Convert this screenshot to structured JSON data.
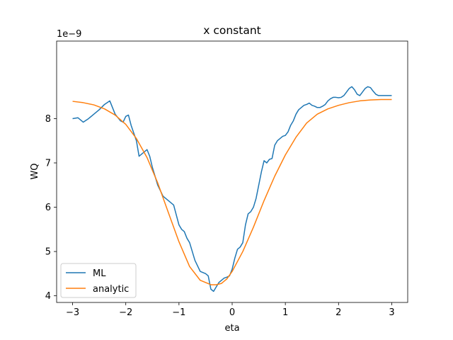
{
  "chart_data": {
    "type": "line",
    "title": "x constant",
    "xlabel": "eta",
    "ylabel": "WQ",
    "y_offset_label": "1e−9",
    "xlim": [
      -3.3,
      3.3
    ],
    "ylim": [
      3.85,
      9.75
    ],
    "x_ticks": [
      -3,
      -2,
      -1,
      0,
      1,
      2,
      3
    ],
    "x_tick_labels": [
      "−3",
      "−2",
      "−1",
      "0",
      "1",
      "2",
      "3"
    ],
    "y_ticks": [
      4,
      5,
      6,
      7,
      8
    ],
    "y_tick_labels": [
      "4",
      "5",
      "6",
      "7",
      "8"
    ],
    "grid": false,
    "legend_position": "lower-left",
    "series": [
      {
        "name": "ML",
        "color": "#1f77b4",
        "x": [
          -3.0,
          -2.9,
          -2.8,
          -2.7,
          -2.6,
          -2.5,
          -2.4,
          -2.3,
          -2.25,
          -2.2,
          -2.1,
          -2.05,
          -2.0,
          -1.95,
          -1.9,
          -1.8,
          -1.75,
          -1.7,
          -1.6,
          -1.55,
          -1.5,
          -1.45,
          -1.4,
          -1.3,
          -1.2,
          -1.1,
          -1.0,
          -0.95,
          -0.9,
          -0.85,
          -0.8,
          -0.75,
          -0.7,
          -0.6,
          -0.5,
          -0.45,
          -0.4,
          -0.35,
          -0.3,
          -0.25,
          -0.2,
          -0.15,
          -0.1,
          -0.05,
          0.0,
          0.05,
          0.1,
          0.15,
          0.2,
          0.25,
          0.3,
          0.35,
          0.4,
          0.45,
          0.5,
          0.55,
          0.6,
          0.65,
          0.7,
          0.75,
          0.8,
          0.85,
          0.9,
          0.95,
          1.0,
          1.05,
          1.1,
          1.15,
          1.2,
          1.25,
          1.3,
          1.35,
          1.4,
          1.45,
          1.5,
          1.55,
          1.6,
          1.65,
          1.7,
          1.75,
          1.8,
          1.85,
          1.9,
          1.95,
          2.0,
          2.05,
          2.1,
          2.15,
          2.2,
          2.25,
          2.3,
          2.35,
          2.4,
          2.45,
          2.5,
          2.55,
          2.6,
          2.65,
          2.7,
          2.75,
          2.8,
          2.85,
          2.9,
          2.95,
          3.0
        ],
        "y": [
          8.0,
          8.02,
          7.92,
          8.0,
          8.1,
          8.2,
          8.32,
          8.4,
          8.25,
          8.1,
          7.95,
          7.92,
          8.05,
          8.08,
          7.85,
          7.5,
          7.15,
          7.2,
          7.3,
          7.15,
          6.9,
          6.7,
          6.5,
          6.25,
          6.15,
          6.05,
          5.6,
          5.5,
          5.45,
          5.3,
          5.2,
          5.0,
          4.8,
          4.55,
          4.5,
          4.45,
          4.15,
          4.1,
          4.2,
          4.3,
          4.35,
          4.4,
          4.42,
          4.45,
          4.6,
          4.85,
          5.05,
          5.1,
          5.2,
          5.6,
          5.85,
          5.9,
          6.0,
          6.2,
          6.5,
          6.8,
          7.05,
          7.0,
          7.08,
          7.1,
          7.4,
          7.5,
          7.55,
          7.6,
          7.62,
          7.7,
          7.85,
          7.95,
          8.1,
          8.2,
          8.25,
          8.3,
          8.32,
          8.35,
          8.3,
          8.28,
          8.25,
          8.25,
          8.28,
          8.32,
          8.4,
          8.45,
          8.48,
          8.48,
          8.47,
          8.48,
          8.52,
          8.6,
          8.68,
          8.72,
          8.65,
          8.55,
          8.52,
          8.6,
          8.68,
          8.72,
          8.7,
          8.62,
          8.55,
          8.52,
          8.52,
          8.52,
          8.52,
          8.52,
          8.52
        ]
      },
      {
        "name": "analytic",
        "color": "#ff7f0e",
        "x": [
          -3.0,
          -2.8,
          -2.6,
          -2.4,
          -2.2,
          -2.0,
          -1.8,
          -1.6,
          -1.4,
          -1.2,
          -1.0,
          -0.8,
          -0.6,
          -0.4,
          -0.3,
          -0.2,
          -0.1,
          0.0,
          0.2,
          0.4,
          0.6,
          0.8,
          1.0,
          1.2,
          1.4,
          1.6,
          1.8,
          2.0,
          2.2,
          2.4,
          2.6,
          2.8,
          3.0
        ],
        "y": [
          8.39,
          8.36,
          8.31,
          8.22,
          8.08,
          7.87,
          7.55,
          7.12,
          6.55,
          5.88,
          5.22,
          4.66,
          4.35,
          4.25,
          4.25,
          4.28,
          4.38,
          4.55,
          5.0,
          5.55,
          6.15,
          6.7,
          7.18,
          7.58,
          7.9,
          8.1,
          8.22,
          8.3,
          8.36,
          8.4,
          8.42,
          8.43,
          8.43
        ]
      }
    ]
  }
}
